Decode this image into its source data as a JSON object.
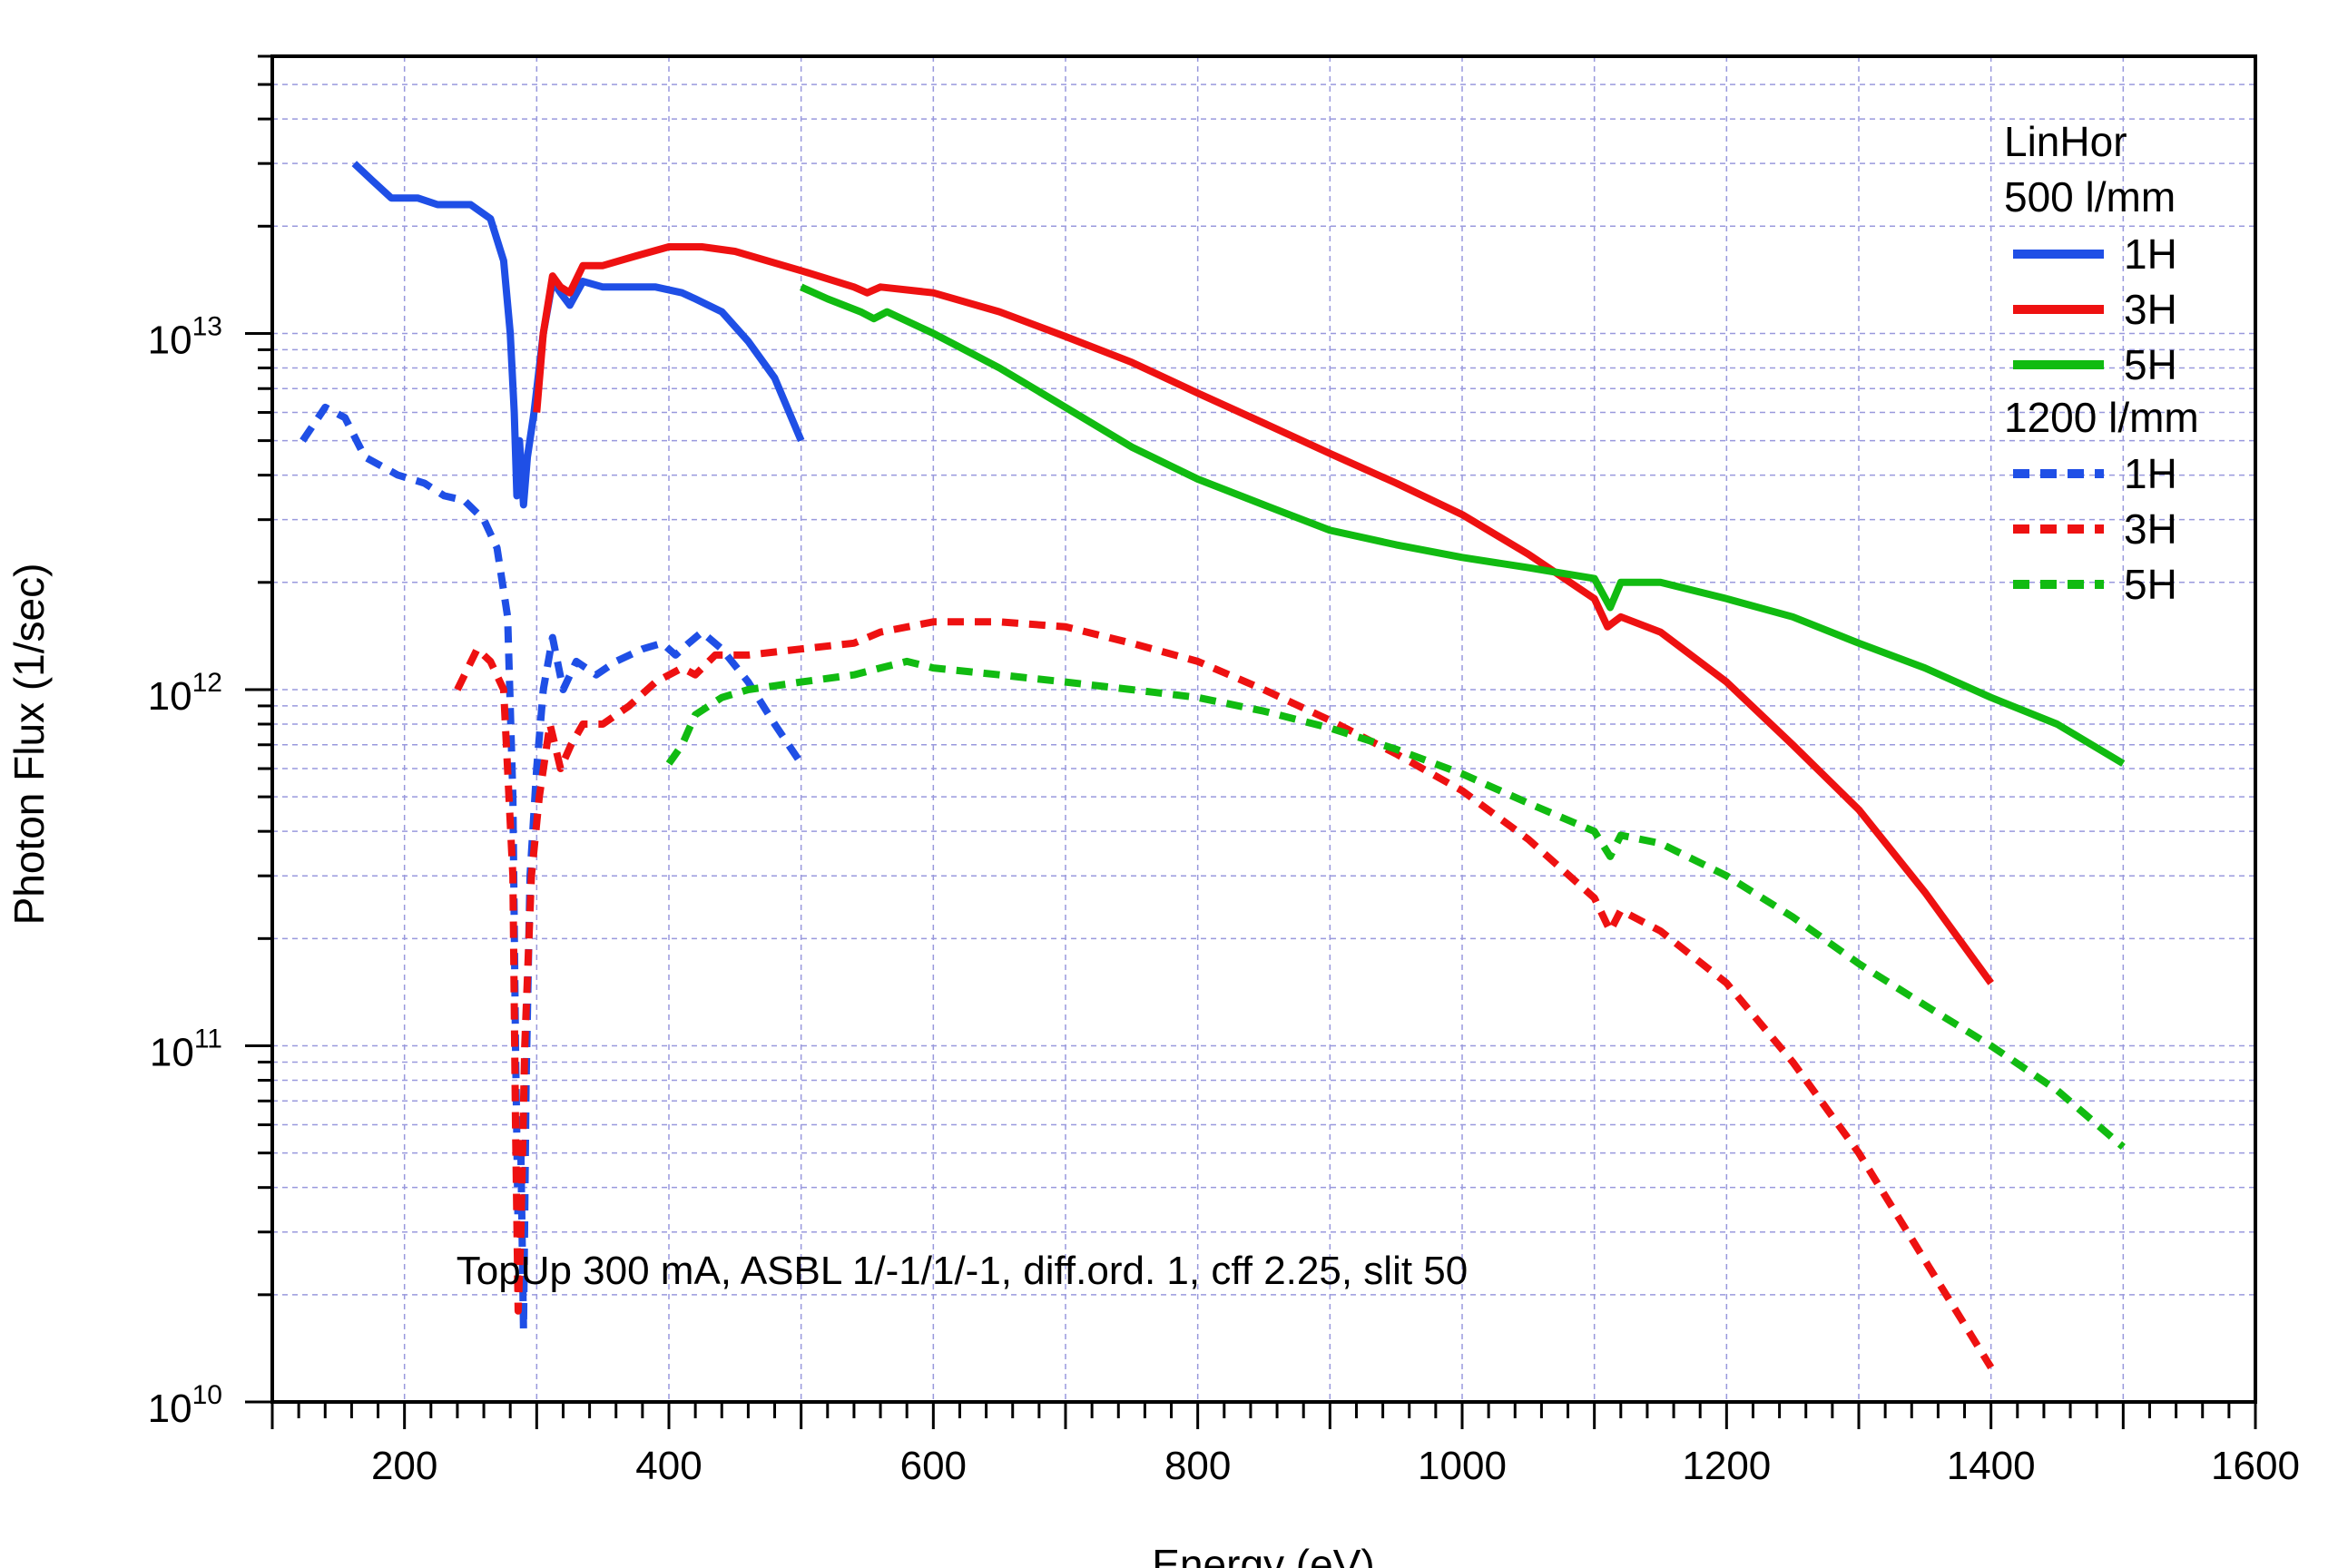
{
  "chart_data": {
    "type": "line",
    "xlabel": "Energy (eV)",
    "ylabel": "Photon Flux (1/sec)",
    "xlim": [
      100,
      1600
    ],
    "ylim": [
      10000000000.0,
      60000000000000.0
    ],
    "yscale": "log",
    "grid": true,
    "x_ticks": [
      {
        "v": 200,
        "label": "200"
      },
      {
        "v": 400,
        "label": "400"
      },
      {
        "v": 600,
        "label": "600"
      },
      {
        "v": 800,
        "label": "800"
      },
      {
        "v": 1000,
        "label": "1000"
      },
      {
        "v": 1200,
        "label": "1200"
      },
      {
        "v": 1400,
        "label": "1400"
      },
      {
        "v": 1600,
        "label": "1600"
      }
    ],
    "y_ticks": [
      {
        "v": 10000000000.0,
        "base": "10",
        "exp": "10"
      },
      {
        "v": 100000000000.0,
        "base": "10",
        "exp": "11"
      },
      {
        "v": 1000000000000.0,
        "base": "10",
        "exp": "12"
      },
      {
        "v": 10000000000000.0,
        "base": "10",
        "exp": "13"
      }
    ],
    "annotation": "TopUp 300 mA, ASBL 1/-1/1/-1, diff.ord. 1, cff 2.25, slit 50",
    "legend": {
      "position": "top-right",
      "headers": [
        "LinHor",
        "500 l/mm",
        "1200 l/mm"
      ]
    },
    "colors": {
      "1H": "#1f4fe6",
      "3H": "#ee1111",
      "5H": "#11bb11",
      "grid": "#9999dd",
      "axis": "#000000"
    },
    "series": [
      {
        "name": "1H",
        "group": "500 l/mm",
        "color": "#1f4fe6",
        "dashed": false,
        "points": [
          [
            162,
            30000000000000.0
          ],
          [
            175,
            27000000000000.0
          ],
          [
            190,
            24000000000000.0
          ],
          [
            210,
            24000000000000.0
          ],
          [
            225,
            23000000000000.0
          ],
          [
            250,
            23000000000000.0
          ],
          [
            265,
            21000000000000.0
          ],
          [
            275,
            16000000000000.0
          ],
          [
            280,
            10000000000000.0
          ],
          [
            283,
            6000000000000.0
          ],
          [
            285,
            3500000000000.0
          ],
          [
            287,
            5000000000000.0
          ],
          [
            290,
            3300000000000.0
          ],
          [
            293,
            4500000000000.0
          ],
          [
            298,
            6000000000000.0
          ],
          [
            305,
            10000000000000.0
          ],
          [
            312,
            14000000000000.0
          ],
          [
            318,
            13000000000000.0
          ],
          [
            325,
            12000000000000.0
          ],
          [
            335,
            14000000000000.0
          ],
          [
            350,
            13500000000000.0
          ],
          [
            370,
            13500000000000.0
          ],
          [
            390,
            13500000000000.0
          ],
          [
            410,
            13000000000000.0
          ],
          [
            420,
            12500000000000.0
          ],
          [
            440,
            11500000000000.0
          ],
          [
            460,
            9500000000000.0
          ],
          [
            480,
            7500000000000.0
          ],
          [
            500,
            5000000000000.0
          ]
        ]
      },
      {
        "name": "3H",
        "group": "500 l/mm",
        "color": "#ee1111",
        "dashed": false,
        "points": [
          [
            300,
            6000000000000.0
          ],
          [
            305,
            10000000000000.0
          ],
          [
            312,
            14500000000000.0
          ],
          [
            318,
            13500000000000.0
          ],
          [
            325,
            13000000000000.0
          ],
          [
            335,
            15500000000000.0
          ],
          [
            350,
            15500000000000.0
          ],
          [
            375,
            16500000000000.0
          ],
          [
            400,
            17500000000000.0
          ],
          [
            425,
            17500000000000.0
          ],
          [
            450,
            17000000000000.0
          ],
          [
            500,
            15000000000000.0
          ],
          [
            540,
            13500000000000.0
          ],
          [
            550,
            13000000000000.0
          ],
          [
            560,
            13500000000000.0
          ],
          [
            600,
            13000000000000.0
          ],
          [
            650,
            11500000000000.0
          ],
          [
            700,
            9800000000000.0
          ],
          [
            750,
            8300000000000.0
          ],
          [
            800,
            6800000000000.0
          ],
          [
            850,
            5600000000000.0
          ],
          [
            900,
            4600000000000.0
          ],
          [
            950,
            3800000000000.0
          ],
          [
            1000,
            3100000000000.0
          ],
          [
            1050,
            2400000000000.0
          ],
          [
            1100,
            1800000000000.0
          ],
          [
            1110,
            1500000000000.0
          ],
          [
            1120,
            1600000000000.0
          ],
          [
            1150,
            1450000000000.0
          ],
          [
            1200,
            1050000000000.0
          ],
          [
            1250,
            700000000000.0
          ],
          [
            1300,
            460000000000.0
          ],
          [
            1350,
            270000000000.0
          ],
          [
            1400,
            150000000000.0
          ]
        ]
      },
      {
        "name": "5H",
        "group": "500 l/mm",
        "color": "#11bb11",
        "dashed": false,
        "points": [
          [
            500,
            13500000000000.0
          ],
          [
            520,
            12500000000000.0
          ],
          [
            545,
            11500000000000.0
          ],
          [
            555,
            11000000000000.0
          ],
          [
            565,
            11500000000000.0
          ],
          [
            600,
            10000000000000.0
          ],
          [
            650,
            8000000000000.0
          ],
          [
            700,
            6200000000000.0
          ],
          [
            750,
            4800000000000.0
          ],
          [
            800,
            3900000000000.0
          ],
          [
            850,
            3300000000000.0
          ],
          [
            900,
            2800000000000.0
          ],
          [
            950,
            2550000000000.0
          ],
          [
            1000,
            2350000000000.0
          ],
          [
            1050,
            2200000000000.0
          ],
          [
            1100,
            2050000000000.0
          ],
          [
            1112,
            1700000000000.0
          ],
          [
            1120,
            2000000000000.0
          ],
          [
            1150,
            2000000000000.0
          ],
          [
            1200,
            1800000000000.0
          ],
          [
            1250,
            1600000000000.0
          ],
          [
            1300,
            1350000000000.0
          ],
          [
            1350,
            1150000000000.0
          ],
          [
            1400,
            950000000000.0
          ],
          [
            1450,
            800000000000.0
          ],
          [
            1500,
            620000000000.0
          ]
        ]
      },
      {
        "name": "1H",
        "group": "1200 l/mm",
        "color": "#1f4fe6",
        "dashed": true,
        "points": [
          [
            123,
            5000000000000.0
          ],
          [
            140,
            6200000000000.0
          ],
          [
            155,
            5800000000000.0
          ],
          [
            170,
            4500000000000.0
          ],
          [
            195,
            4000000000000.0
          ],
          [
            215,
            3800000000000.0
          ],
          [
            230,
            3500000000000.0
          ],
          [
            245,
            3400000000000.0
          ],
          [
            260,
            3000000000000.0
          ],
          [
            270,
            2500000000000.0
          ],
          [
            278,
            1600000000000.0
          ],
          [
            282,
            500000000000.0
          ],
          [
            284,
            100000000000.0
          ],
          [
            286,
            30000000000.0
          ],
          [
            288,
            50000000000.0
          ],
          [
            290,
            16000000000.0
          ],
          [
            292,
            80000000000.0
          ],
          [
            295,
            300000000000.0
          ],
          [
            300,
            600000000000.0
          ],
          [
            305,
            1000000000000.0
          ],
          [
            312,
            1400000000000.0
          ],
          [
            320,
            1000000000000.0
          ],
          [
            330,
            1200000000000.0
          ],
          [
            345,
            1100000000000.0
          ],
          [
            360,
            1200000000000.0
          ],
          [
            380,
            1300000000000.0
          ],
          [
            395,
            1350000000000.0
          ],
          [
            405,
            1250000000000.0
          ],
          [
            415,
            1350000000000.0
          ],
          [
            425,
            1450000000000.0
          ],
          [
            440,
            1300000000000.0
          ],
          [
            460,
            1050000000000.0
          ],
          [
            480,
            800000000000.0
          ],
          [
            500,
            620000000000.0
          ]
        ]
      },
      {
        "name": "3H",
        "group": "1200 l/mm",
        "color": "#ee1111",
        "dashed": true,
        "points": [
          [
            240,
            1000000000000.0
          ],
          [
            255,
            1300000000000.0
          ],
          [
            265,
            1200000000000.0
          ],
          [
            275,
            1000000000000.0
          ],
          [
            282,
            300000000000.0
          ],
          [
            284,
            60000000000.0
          ],
          [
            286,
            18000000000.0
          ],
          [
            288,
            30000000000.0
          ],
          [
            291,
            100000000000.0
          ],
          [
            296,
            300000000000.0
          ],
          [
            302,
            500000000000.0
          ],
          [
            310,
            800000000000.0
          ],
          [
            318,
            600000000000.0
          ],
          [
            326,
            700000000000.0
          ],
          [
            335,
            800000000000.0
          ],
          [
            350,
            800000000000.0
          ],
          [
            370,
            900000000000.0
          ],
          [
            390,
            1050000000000.0
          ],
          [
            410,
            1150000000000.0
          ],
          [
            420,
            1100000000000.0
          ],
          [
            435,
            1250000000000.0
          ],
          [
            460,
            1250000000000.0
          ],
          [
            500,
            1300000000000.0
          ],
          [
            540,
            1350000000000.0
          ],
          [
            560,
            1450000000000.0
          ],
          [
            600,
            1550000000000.0
          ],
          [
            650,
            1550000000000.0
          ],
          [
            700,
            1500000000000.0
          ],
          [
            750,
            1350000000000.0
          ],
          [
            800,
            1200000000000.0
          ],
          [
            850,
            1000000000000.0
          ],
          [
            900,
            820000000000.0
          ],
          [
            950,
            660000000000.0
          ],
          [
            1000,
            520000000000.0
          ],
          [
            1050,
            380000000000.0
          ],
          [
            1100,
            260000000000.0
          ],
          [
            1112,
            210000000000.0
          ],
          [
            1120,
            240000000000.0
          ],
          [
            1150,
            210000000000.0
          ],
          [
            1200,
            150000000000.0
          ],
          [
            1250,
            90000000000.0
          ],
          [
            1300,
            50000000000.0
          ],
          [
            1350,
            25000000000.0
          ],
          [
            1400,
            12500000000.0
          ]
        ]
      },
      {
        "name": "5H",
        "group": "1200 l/mm",
        "color": "#11bb11",
        "dashed": true,
        "points": [
          [
            400,
            620000000000.0
          ],
          [
            410,
            700000000000.0
          ],
          [
            420,
            850000000000.0
          ],
          [
            440,
            950000000000.0
          ],
          [
            460,
            1000000000000.0
          ],
          [
            500,
            1050000000000.0
          ],
          [
            540,
            1100000000000.0
          ],
          [
            560,
            1150000000000.0
          ],
          [
            580,
            1200000000000.0
          ],
          [
            600,
            1150000000000.0
          ],
          [
            650,
            1100000000000.0
          ],
          [
            700,
            1050000000000.0
          ],
          [
            750,
            1000000000000.0
          ],
          [
            800,
            950000000000.0
          ],
          [
            850,
            870000000000.0
          ],
          [
            900,
            780000000000.0
          ],
          [
            950,
            680000000000.0
          ],
          [
            1000,
            580000000000.0
          ],
          [
            1050,
            480000000000.0
          ],
          [
            1100,
            400000000000.0
          ],
          [
            1112,
            340000000000.0
          ],
          [
            1120,
            390000000000.0
          ],
          [
            1150,
            370000000000.0
          ],
          [
            1200,
            300000000000.0
          ],
          [
            1250,
            230000000000.0
          ],
          [
            1300,
            170000000000.0
          ],
          [
            1350,
            130000000000.0
          ],
          [
            1400,
            100000000000.0
          ],
          [
            1450,
            75000000000.0
          ],
          [
            1500,
            52000000000.0
          ]
        ]
      }
    ]
  }
}
